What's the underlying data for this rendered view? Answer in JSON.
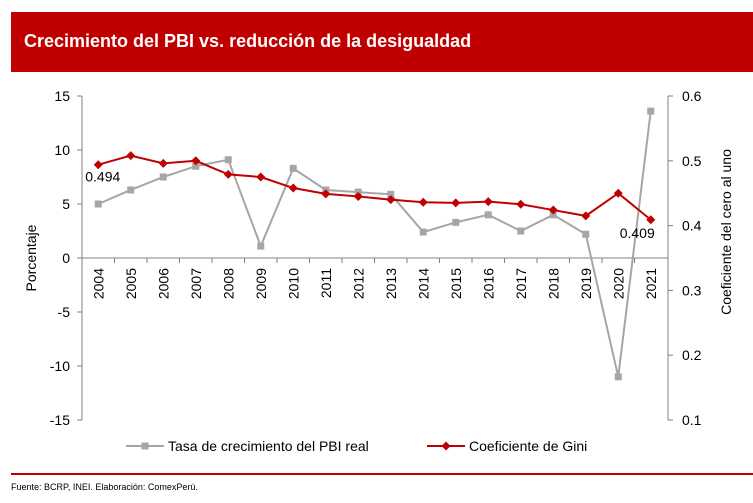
{
  "header": {
    "title": "Crecimiento del PBI vs. reducción de la desigualdad"
  },
  "footer": {
    "source": "Fuente: BCRP, INEI. Elaboración: ComexPerú."
  },
  "colors": {
    "brand": "#c00000",
    "gdp_series": "#a6a6a6",
    "gini_series": "#c00000"
  },
  "chart_data": {
    "type": "line",
    "title": "",
    "categories": [
      "2004",
      "2005",
      "2006",
      "2007",
      "2008",
      "2009",
      "2010",
      "2011",
      "2012",
      "2013",
      "2014",
      "2015",
      "2016",
      "2017",
      "2018",
      "2019",
      "2020",
      "2021"
    ],
    "ylabel": "Porcentaje",
    "ylim": [
      -15,
      15
    ],
    "yticks": [
      "15",
      "10",
      "5",
      "0",
      "-5",
      "-10",
      "-15"
    ],
    "y2label": "Coeficiente del cero al uno",
    "y2lim": [
      0.1,
      0.6
    ],
    "y2ticks": [
      "0.6",
      "0.5",
      "0.4",
      "0.3",
      "0.2",
      "0.1"
    ],
    "grid": false,
    "legend_position": "bottom",
    "series": [
      {
        "name": "Tasa de crecimiento del PBI real",
        "axis": "left",
        "marker": "square",
        "values": [
          5.0,
          6.3,
          7.5,
          8.5,
          9.1,
          1.1,
          8.3,
          6.3,
          6.1,
          5.9,
          2.4,
          3.3,
          4.0,
          2.5,
          4.0,
          2.2,
          -11.0,
          13.6
        ]
      },
      {
        "name": "Coeficiente de Gini",
        "axis": "right",
        "marker": "diamond",
        "values": [
          0.494,
          0.508,
          0.496,
          0.5,
          0.479,
          0.475,
          0.458,
          0.449,
          0.445,
          0.44,
          0.436,
          0.435,
          0.437,
          0.433,
          0.424,
          0.415,
          0.45,
          0.409
        ]
      }
    ],
    "annotations": [
      {
        "text": "0.494",
        "series": 1,
        "index": 0
      },
      {
        "text": "0.409",
        "series": 1,
        "index": 17
      }
    ]
  }
}
